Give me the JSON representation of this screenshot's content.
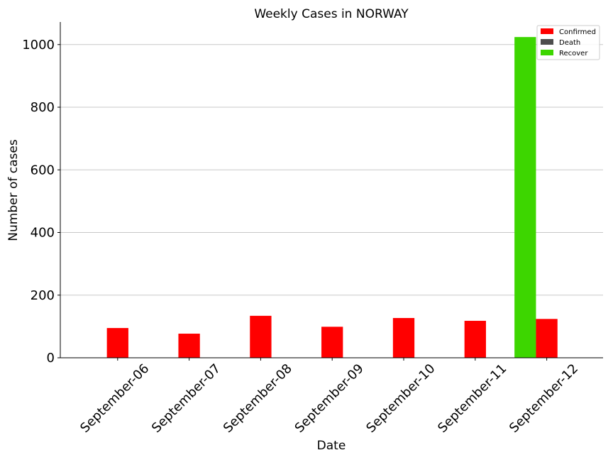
{
  "chart_data": {
    "type": "bar",
    "title": "Weekly Cases in NORWAY",
    "xlabel": "Date",
    "ylabel": "Number of cases",
    "categories": [
      "September-06",
      "September-07",
      "September-08",
      "September-09",
      "September-10",
      "September-11",
      "September-12"
    ],
    "series": [
      {
        "name": "Confirmed",
        "color": "#ff0000",
        "values": [
          95,
          77,
          134,
          99,
          127,
          118,
          124
        ]
      },
      {
        "name": "Death",
        "color": "#4d4d4d",
        "values": [
          0,
          0,
          0,
          0,
          0,
          0,
          0
        ]
      },
      {
        "name": "Recover",
        "color": "#3dd600",
        "values": [
          0,
          0,
          0,
          0,
          0,
          0,
          1024
        ]
      }
    ],
    "ylim": [
      0,
      1072
    ],
    "yticks": [
      0,
      200,
      400,
      600,
      800,
      1000
    ],
    "grid": "horizontal",
    "legend": "top-right"
  }
}
